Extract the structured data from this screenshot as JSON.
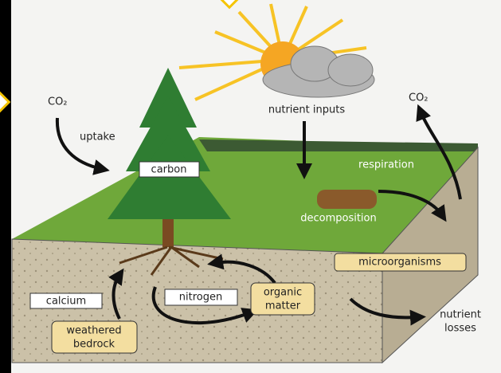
{
  "labels": {
    "co2_in": "CO₂",
    "uptake": "uptake",
    "carbon": "carbon",
    "nutrient_inputs": "nutrient inputs",
    "co2_out": "CO₂",
    "respiration": "respiration",
    "decomposition": "decomposition",
    "microorganisms": "microorganisms",
    "calcium": "calcium",
    "nitrogen": "nitrogen",
    "organic_matter": [
      "organic",
      "matter"
    ],
    "weathered_bedrock": [
      "weathered",
      "bedrock"
    ],
    "nutrient_losses": [
      "nutrient",
      "losses"
    ]
  }
}
